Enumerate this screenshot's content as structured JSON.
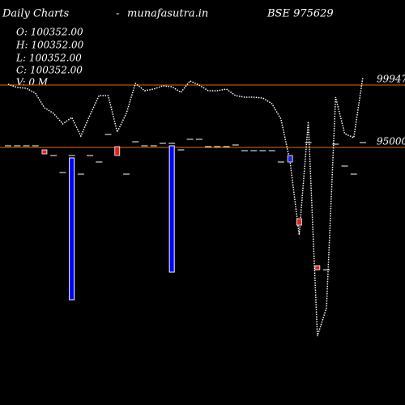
{
  "chart_data": {
    "type": "candlestick",
    "title": "Daily Charts",
    "separator": "-",
    "source": "munafasutra.in",
    "symbol": "BSE 975629",
    "ohlc_labels": [
      "O: 100352.00",
      "H: 100352.00",
      "L: 100352.00",
      "C: 100352.00",
      "V: 0  M"
    ],
    "categories": [
      null,
      null,
      null,
      null,
      null,
      null,
      null,
      null,
      null,
      null,
      null,
      null,
      null,
      null,
      null,
      null,
      null,
      null,
      null,
      null,
      null,
      null,
      null,
      null,
      null,
      null,
      null,
      null,
      null,
      null,
      null,
      null,
      null,
      null,
      null,
      null,
      null,
      null,
      null,
      null
    ],
    "open": [
      95128,
      95128,
      95128,
      95128,
      94807,
      94357,
      93008,
      94357,
      92880,
      94357,
      93843,
      96028,
      95064,
      92880,
      95450,
      95128,
      95128,
      95321,
      95321,
      94807,
      95643,
      95643,
      95064,
      95064,
      95064,
      95193,
      94743,
      94743,
      94743,
      94743,
      93843,
      93843,
      89346,
      95386,
      85619,
      85298,
      95257,
      93522,
      92880,
      95386
    ],
    "close": [
      95128,
      95128,
      95128,
      95128,
      94486,
      94357,
      93008,
      94357,
      92880,
      94357,
      93843,
      96028,
      94357,
      92880,
      95450,
      95128,
      95128,
      95321,
      95321,
      94807,
      95643,
      95643,
      95064,
      95064,
      95064,
      95193,
      94743,
      94743,
      94743,
      94743,
      93843,
      94357,
      88832,
      95386,
      85298,
      85298,
      95257,
      93522,
      92880,
      95386
    ],
    "up_color": "#2222dd",
    "down_color": "#dd2222",
    "flat_color": "#ffffff",
    "line": {
      "color": "#ffffff",
      "values": [
        100012,
        99754,
        99690,
        99305,
        98148,
        97699,
        96863,
        97377,
        95900,
        97570,
        99112,
        99112,
        96221,
        97699,
        100076,
        99498,
        99626,
        99883,
        99819,
        99369,
        100269,
        99947,
        99498,
        99498,
        99626,
        99112,
        98984,
        98984,
        98919,
        98470,
        97249,
        93843,
        88061,
        97056,
        80030,
        82278,
        98984,
        96092,
        95771,
        100590
      ]
    },
    "volume": {
      "color": "#0000ff",
      "values": [
        0,
        0,
        0,
        0,
        0,
        0,
        0,
        175,
        0,
        0,
        0,
        0,
        0,
        0,
        0,
        0,
        0,
        0,
        156,
        0,
        0,
        0,
        0,
        0,
        0,
        0,
        0,
        0,
        0,
        0,
        0,
        0,
        0,
        0,
        0,
        0,
        0,
        0,
        0,
        0
      ]
    },
    "y2lim": [
      0,
      500
    ],
    "ylim": [
      74568,
      106693
    ],
    "yticks": [
      99947,
      95000
    ],
    "grid_color": "#e07000"
  }
}
